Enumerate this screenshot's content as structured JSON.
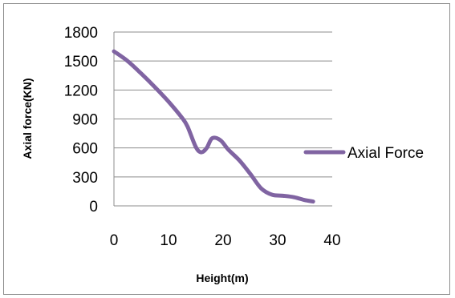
{
  "chart_data": {
    "type": "line",
    "title": "",
    "xlabel": "Height(m)",
    "ylabel": "Axial force(KN)",
    "xlim": [
      0,
      40
    ],
    "ylim": [
      0,
      1800
    ],
    "x_ticks": [
      "0",
      "10",
      "20",
      "30",
      "40"
    ],
    "y_ticks": [
      "1800",
      "1500",
      "1200",
      "900",
      "600",
      "300",
      "0"
    ],
    "grid": "horizontal",
    "legend_position": "right",
    "series": [
      {
        "name": "Axial Force",
        "color": "#8064a2",
        "x": [
          0,
          2.5,
          5,
          7.5,
          10,
          12.5,
          13.5,
          15,
          16,
          17,
          18,
          19.5,
          21,
          23,
          25,
          27,
          29,
          31,
          33,
          35,
          36.5
        ],
        "y": [
          1600,
          1500,
          1370,
          1230,
          1080,
          910,
          820,
          610,
          555,
          600,
          700,
          680,
          580,
          470,
          330,
          180,
          115,
          105,
          90,
          60,
          45
        ]
      }
    ]
  }
}
